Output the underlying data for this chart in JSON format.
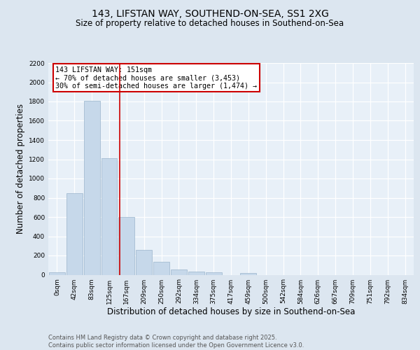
{
  "title1": "143, LIFSTAN WAY, SOUTHEND-ON-SEA, SS1 2XG",
  "title2": "Size of property relative to detached houses in Southend-on-Sea",
  "xlabel": "Distribution of detached houses by size in Southend-on-Sea",
  "ylabel": "Number of detached properties",
  "categories": [
    "0sqm",
    "42sqm",
    "83sqm",
    "125sqm",
    "167sqm",
    "209sqm",
    "250sqm",
    "292sqm",
    "334sqm",
    "375sqm",
    "417sqm",
    "459sqm",
    "500sqm",
    "542sqm",
    "584sqm",
    "626sqm",
    "667sqm",
    "709sqm",
    "751sqm",
    "792sqm",
    "834sqm"
  ],
  "bar_values": [
    25,
    845,
    1810,
    1210,
    600,
    260,
    135,
    55,
    35,
    25,
    0,
    15,
    0,
    0,
    0,
    0,
    0,
    0,
    0,
    0,
    0
  ],
  "bar_color": "#c6d8ea",
  "bar_edge_color": "#9ab5cc",
  "vline_x": 3.62,
  "vline_color": "#cc0000",
  "annotation_text": "143 LIFSTAN WAY: 151sqm\n← 70% of detached houses are smaller (3,453)\n30% of semi-detached houses are larger (1,474) →",
  "annotation_box_color": "#ffffff",
  "annotation_box_edge": "#cc0000",
  "ylim": [
    0,
    2200
  ],
  "yticks": [
    0,
    200,
    400,
    600,
    800,
    1000,
    1200,
    1400,
    1600,
    1800,
    2000,
    2200
  ],
  "footer": "Contains HM Land Registry data © Crown copyright and database right 2025.\nContains public sector information licensed under the Open Government Licence v3.0.",
  "bg_color": "#dce6f0",
  "plot_bg_color": "#e8f0f8",
  "grid_color": "#ffffff",
  "title_fontsize": 10,
  "subtitle_fontsize": 8.5,
  "tick_fontsize": 6.5,
  "label_fontsize": 8.5,
  "footer_fontsize": 6.0
}
